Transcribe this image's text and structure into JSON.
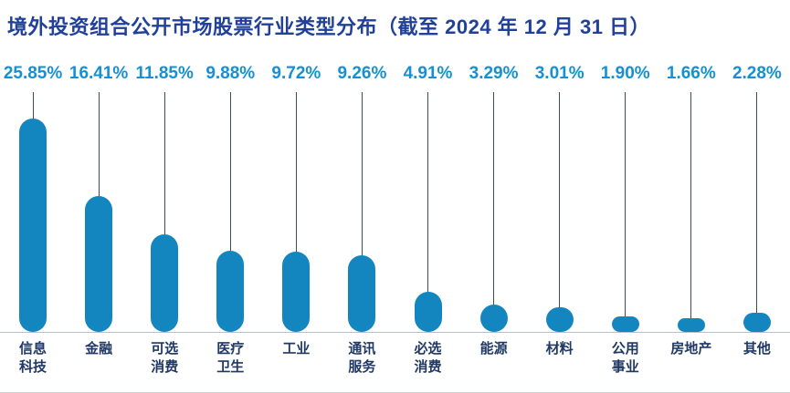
{
  "title": "境外投资组合公开市场股票行业类型分布（截至 2024 年 12 月 31 日）",
  "colors": {
    "title": "#21409a",
    "percent_label": "#1590d2",
    "bar": "#1386c0",
    "stem": "#3d4a5c",
    "category_label": "#1f3864",
    "baseline": "#b9c0c9"
  },
  "chart_data": {
    "type": "bar",
    "title": "境外投资组合公开市场股票行业类型分布（截至 2024 年 12 月 31 日）",
    "categories": [
      "信息科技",
      "金融",
      "可选消费",
      "医疗卫生",
      "工业",
      "通讯服务",
      "必选消费",
      "能源",
      "材料",
      "公用事业",
      "房地产",
      "其他"
    ],
    "values": [
      25.85,
      16.41,
      11.85,
      9.88,
      9.72,
      9.26,
      4.91,
      3.29,
      3.01,
      1.9,
      1.66,
      2.28
    ],
    "value_labels": [
      "25.85%",
      "16.41%",
      "11.85%",
      "9.88%",
      "9.72%",
      "9.26%",
      "4.91%",
      "3.29%",
      "3.01%",
      "1.90%",
      "1.66%",
      "2.28%"
    ],
    "category_labels_display": [
      "信息\n科技",
      "金融",
      "可选\n消费",
      "医疗\n卫生",
      "工业",
      "通讯\n服务",
      "必选\n消费",
      "能源",
      "材料",
      "公用\n事业",
      "房地产",
      "其他"
    ],
    "xlabel": "",
    "ylabel": "",
    "ylim": [
      0,
      25.85
    ],
    "grid": false,
    "legend": false,
    "style": "lollipop (thin stem with rounded capsule bar from baseline)"
  }
}
